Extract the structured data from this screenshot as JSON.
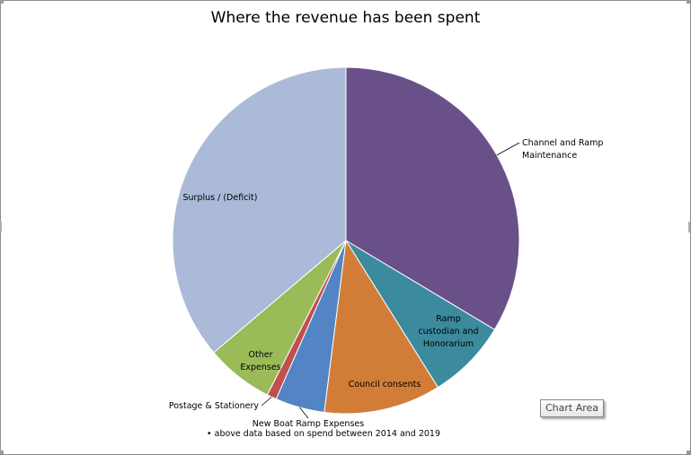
{
  "chart_data": {
    "type": "pie",
    "title": "Where the revenue has been spent",
    "slices": [
      {
        "label": "Channel and Ramp Maintenance",
        "value": 33.6,
        "color": "#6a5088"
      },
      {
        "label": "Ramp custodian and Honorarium",
        "value": 7.5,
        "color": "#3c8a9e"
      },
      {
        "label": "Council consents",
        "value": 10.9,
        "color": "#d17d38"
      },
      {
        "label": "New Boat Ramp Expenses",
        "value": 4.6,
        "color": "#5384c4"
      },
      {
        "label": "Postage & Stationery",
        "value": 0.9,
        "color": "#c0504d"
      },
      {
        "label": "Other Expenses",
        "value": 6.3,
        "color": "#9bbb59"
      },
      {
        "label": "Surplus / (Deficit)",
        "value": 36.2,
        "color": "#abbad8"
      }
    ],
    "footnote": "above data based on spend between 2014 and 2019",
    "legend": "none"
  },
  "ui": {
    "tooltip": "Chart Area"
  }
}
